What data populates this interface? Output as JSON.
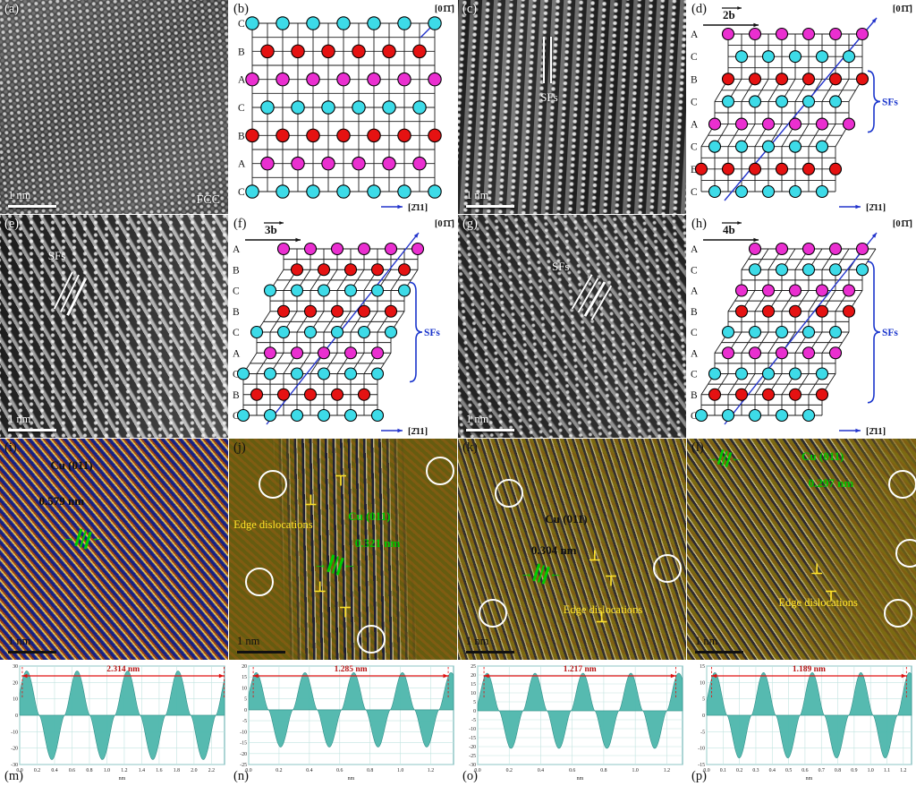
{
  "colors": {
    "sf_bracket_blue": "#1a35cc",
    "direction_arrow_blue": "#2233cc",
    "marker_green": "#00cc00",
    "edge_yellow": "#ffe32a",
    "waveform_teal": "#4db6ac",
    "span_arrow_red": "#e01010"
  },
  "stack_colors": {
    "A": "#ea2fd0",
    "B": "#e51212",
    "C": "#3ddbe8"
  },
  "hrtem_panels": [
    {
      "id": "a",
      "label": "(a)",
      "scale_label": "1 nm",
      "annotation": "FCC",
      "sf_label": null,
      "sf_line_count": 0
    },
    {
      "id": "c",
      "label": "(c)",
      "scale_label": "1 nm",
      "annotation": null,
      "sf_label": "SFs",
      "sf_line_count": 2
    },
    {
      "id": "e",
      "label": "(e)",
      "scale_label": "1 nm",
      "annotation": null,
      "sf_label": "SFs",
      "sf_line_count": 3
    },
    {
      "id": "g",
      "label": "(g)",
      "scale_label": "1 nm",
      "annotation": null,
      "sf_label": "SFs",
      "sf_line_count": 4
    }
  ],
  "schematic_panels": [
    {
      "id": "b",
      "label": "(b)",
      "burgers": null,
      "stacking": [
        "C",
        "B",
        "A",
        "C",
        "B",
        "A",
        "C"
      ],
      "offsets": [
        0,
        0,
        0,
        0,
        0,
        0,
        0
      ],
      "sf_bracket": null,
      "dir_up": "[01̄1̄]",
      "dir_right": "[2̄11]"
    },
    {
      "id": "d",
      "label": "(d)",
      "burgers": "2b",
      "stacking": [
        "A",
        "C",
        "B",
        "C",
        "A",
        "C",
        "B",
        "C"
      ],
      "offsets": [
        2,
        2,
        2,
        1,
        1,
        0,
        0,
        0
      ],
      "sf_bracket": {
        "from": 2,
        "to": 4,
        "label": "SFs"
      },
      "dir_up": "[01̄1̄]",
      "dir_right": "[2̄11]"
    },
    {
      "id": "f",
      "label": "(f)",
      "burgers": "3b",
      "stacking": [
        "A",
        "B",
        "C",
        "B",
        "C",
        "A",
        "C",
        "B",
        "C"
      ],
      "offsets": [
        3,
        3,
        2,
        2,
        1,
        1,
        0,
        0,
        0
      ],
      "sf_bracket": {
        "from": 2,
        "to": 6,
        "label": "SFs"
      },
      "dir_up": "[01̄1̄]",
      "dir_right": "[2̄11]"
    },
    {
      "id": "h",
      "label": "(h)",
      "burgers": "4b",
      "stacking": [
        "A",
        "C",
        "A",
        "B",
        "C",
        "A",
        "C",
        "B",
        "C"
      ],
      "offsets": [
        4,
        3,
        3,
        2,
        2,
        1,
        1,
        0,
        0
      ],
      "sf_bracket": {
        "from": 1,
        "to": 7,
        "label": "SFs"
      },
      "dir_up": "[01̄1̄]",
      "dir_right": "[2̄11]"
    }
  ],
  "ifft_panels": [
    {
      "id": "i",
      "label": "(i)",
      "plane": "Cu (011)",
      "spacing": "0.579 nm",
      "scale_label": "1 nm",
      "edge_label": null,
      "circle_count": 0,
      "text_color": "#101010"
    },
    {
      "id": "j",
      "label": "(j)",
      "plane": "Cu (011)",
      "spacing": "0.321 nm",
      "scale_label": "1 nm",
      "edge_label": "Edge dislocations",
      "circle_count": 4,
      "text_color": "#00c400"
    },
    {
      "id": "k",
      "label": "(k)",
      "plane": "Cu (011)",
      "spacing": "0.304 nm",
      "scale_label": "1 nm",
      "edge_label": "Edge dislocations",
      "circle_count": 3,
      "text_color": "#111111"
    },
    {
      "id": "l",
      "label": "(l)",
      "plane": "Cu (011)",
      "spacing": "0.297 nm",
      "scale_label": "1 nm",
      "edge_label": "Edge dislocations",
      "circle_count": 3,
      "text_color": "#00c400"
    }
  ],
  "chart_data": [
    {
      "type": "area",
      "panel_label": "(m)",
      "span_label": "2.314 nm",
      "span_nm": 2.314,
      "span_start_nm": 0.03,
      "period_nm": 0.579,
      "amplitude": 27,
      "phase_nm": 0.08,
      "xlim": [
        0,
        2.35
      ],
      "ylim": [
        -30,
        30
      ],
      "xtick": 0.2,
      "ytick": 10,
      "xlabel": "nm",
      "grid": true,
      "line_color": "#4db6ac",
      "arrow_color": "#e01010"
    },
    {
      "type": "area",
      "panel_label": "(n)",
      "span_label": "1.285 nm",
      "span_nm": 1.285,
      "span_start_nm": 0.03,
      "period_nm": 0.321,
      "amplitude": 17,
      "phase_nm": 0.05,
      "xlim": [
        0,
        1.35
      ],
      "ylim": [
        -25,
        20
      ],
      "xtick": 0.2,
      "ytick": 5,
      "xlabel": "nm",
      "grid": true,
      "line_color": "#4db6ac",
      "arrow_color": "#e01010"
    },
    {
      "type": "area",
      "panel_label": "(o)",
      "span_label": "1.217 nm",
      "span_nm": 1.217,
      "span_start_nm": 0.04,
      "period_nm": 0.304,
      "amplitude": 21,
      "phase_nm": 0.06,
      "xlim": [
        0,
        1.3
      ],
      "ylim": [
        -30,
        25
      ],
      "xtick": 0.2,
      "ytick": 5,
      "xlabel": "nm",
      "grid": true,
      "line_color": "#4db6ac",
      "arrow_color": "#e01010"
    },
    {
      "type": "area",
      "panel_label": "(p)",
      "span_label": "1.189 nm",
      "span_nm": 1.189,
      "span_start_nm": 0.03,
      "period_nm": 0.297,
      "amplitude": 13,
      "phase_nm": 0.05,
      "xlim": [
        0,
        1.25
      ],
      "ylim": [
        -15,
        15
      ],
      "xtick": 0.1,
      "ytick": 5,
      "xlabel": "nm",
      "grid": true,
      "line_color": "#4db6ac",
      "arrow_color": "#e01010"
    }
  ]
}
